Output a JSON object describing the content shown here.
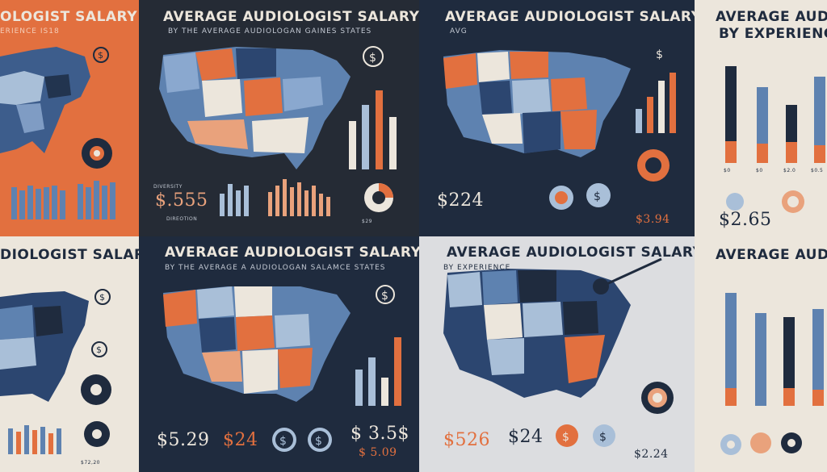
{
  "colors": {
    "orange": "#e2703f",
    "navy": "#1f2b3e",
    "dark_panel": "#252b35",
    "cream": "#ece6dc",
    "blue_steel": "#5e82b0",
    "light_blue": "#a9bfd8"
  },
  "panels": [
    {
      "id": "p1",
      "title": "OLOGIST SALARY",
      "subtitle": "ERIENCE IS18"
    },
    {
      "id": "p2",
      "title": "AVERAGE AUDIOLOGIST SALARY",
      "subtitle": "BY THE AVERAGE AUDIOLOGAN GAINES STATES",
      "price": "$.555",
      "labels": [
        "DIVERSITY",
        "DIREOTION"
      ],
      "price_small": "$29"
    },
    {
      "id": "p3",
      "title": "AVERAGE AUDIOLOGIST SALARY",
      "subtitle": "AVG",
      "price": "$224",
      "price_small": "$3.94"
    },
    {
      "id": "p4",
      "title": "AVERAGE AUDIO",
      "subtitle": "BY EXPERIENCE",
      "price": "$2.65",
      "tick_labels": [
        "$0",
        "$0",
        "$2.0",
        "$0.5"
      ]
    },
    {
      "id": "p5",
      "title": "DIOLOGIST SALARY",
      "price_small": "$72,20"
    },
    {
      "id": "p6",
      "title": "AVERAGE AUDIOLOGIST SALARY",
      "subtitle": "BY THE AVERAGE A AUDIOLOGAN SALAMCE STATES",
      "price": "$5.29",
      "price_mid": "$24",
      "price_right": "$ 3.5$",
      "price_small": "$ 5.09"
    },
    {
      "id": "p7",
      "title": "AVERAGE AUDIOLOGIST SALARY",
      "subtitle": "BY EXPERIENCE",
      "price": "$526",
      "price_mid": "$24",
      "price_small": "$2.24"
    },
    {
      "id": "p8",
      "title": "AVERAGE AUDIO"
    }
  ],
  "icons": [
    "dollar-coin-icon",
    "donut-chart-icon",
    "headphones-icon",
    "us-map-icon",
    "bar-chart-icon"
  ]
}
